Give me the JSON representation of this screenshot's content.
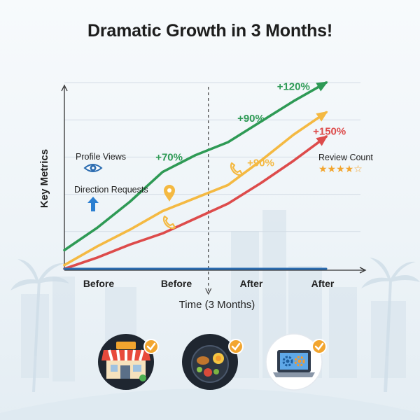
{
  "title": "Dramatic Growth in 3 Months!",
  "colors": {
    "green": "#2e9a55",
    "orange": "#f4b942",
    "red": "#dd4b4b",
    "blue": "#2b6cb0",
    "check": "#f2a52e"
  },
  "chart_data": {
    "type": "line",
    "title": "Dramatic Growth in 3 Months!",
    "xlabel": "Time (3 Months)",
    "ylabel": "Key Metrics",
    "categories": [
      "Before",
      "Before",
      "After",
      "After"
    ],
    "x": [
      0,
      1,
      2,
      3,
      4,
      5,
      6,
      7,
      8
    ],
    "xlim": [
      0,
      8
    ],
    "ylim": [
      0,
      100
    ],
    "grid": true,
    "divider_x": 4.4,
    "series": [
      {
        "color": "green",
        "values": [
          10,
          22,
          36,
          52,
          61,
          68,
          79,
          90,
          100
        ]
      },
      {
        "color": "orange",
        "values": [
          2,
          12,
          21,
          31,
          38,
          45,
          58,
          72,
          84
        ]
      },
      {
        "color": "red",
        "values": [
          0,
          6,
          13,
          19,
          27,
          35,
          46,
          58,
          71
        ]
      },
      {
        "color": "blue",
        "values": [
          0,
          0,
          0,
          0,
          0,
          0,
          0,
          0,
          0
        ]
      }
    ],
    "annotations": [
      {
        "text": "+70%",
        "color": "green",
        "x": 3.2,
        "y": 58
      },
      {
        "text": "+90%",
        "color": "green",
        "x": 5.7,
        "y": 79
      },
      {
        "text": "+120%",
        "color": "green",
        "x": 7.0,
        "y": 96
      },
      {
        "text": "+90%",
        "color": "orange",
        "x": 6.0,
        "y": 55
      },
      {
        "text": "+150%",
        "color": "red",
        "x": 8.1,
        "y": 72
      }
    ]
  },
  "legend": {
    "profile_views": "Profile Views",
    "direction_requests": "Direction Requests",
    "review_count": "Review Count",
    "review_stars": "★★★★☆"
  },
  "icons": {
    "profile": "eye-icon",
    "direction": "arrow-up-icon",
    "map": "map-pin-icon",
    "phone": "phone-icon",
    "store": "storefront-icon",
    "food": "food-plate-icon",
    "laptop": "laptop-settings-icon",
    "check": "check-badge-icon"
  }
}
